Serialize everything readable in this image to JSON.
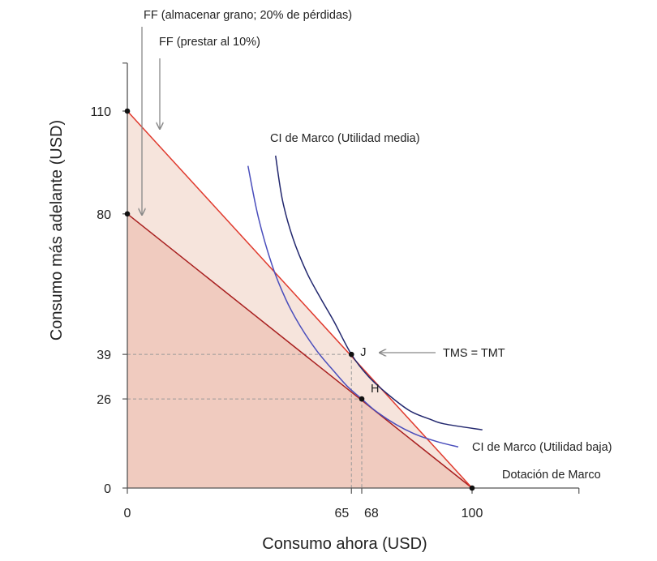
{
  "chart_data": {
    "type": "line",
    "xlabel": "Consumo ahora (USD)",
    "ylabel": "Consumo más adelante (USD)",
    "xlim": [
      0,
      131
    ],
    "ylim": [
      0,
      124
    ],
    "x_ticks": [
      0,
      65,
      68,
      100
    ],
    "y_ticks": [
      0,
      26,
      39,
      80,
      110
    ],
    "x_tick_labels": [
      "0",
      "65",
      "68",
      "100"
    ],
    "y_tick_labels": [
      "0",
      "26",
      "39",
      "80",
      "110"
    ],
    "grid": false,
    "colors": {
      "store_line": "#a81f1f",
      "lend_line": "#e03a2e",
      "ic_low": "#4a4ebc",
      "ic_mid": "#22276e",
      "store_fill": "#f0cbbf",
      "lend_fill": "#f6e4dc",
      "annotation": "#888888",
      "axis": "#555555"
    },
    "series": [
      {
        "key": "store",
        "name": "FF (almacenar grano; 20% de pérdidas)",
        "points": [
          [
            0,
            80
          ],
          [
            100,
            0
          ]
        ]
      },
      {
        "key": "lend",
        "name": "FF (prestar al 10%)",
        "points": [
          [
            0,
            110
          ],
          [
            100,
            0
          ]
        ]
      },
      {
        "key": "ic_low",
        "name": "CI de Marco (Utilidad baja)",
        "points": [
          [
            35,
            94
          ],
          [
            38,
            79
          ],
          [
            42,
            65
          ],
          [
            46,
            55
          ],
          [
            50,
            47.5
          ],
          [
            55,
            40
          ],
          [
            60,
            34
          ],
          [
            64,
            29.5
          ],
          [
            68,
            26
          ],
          [
            72,
            22.5
          ],
          [
            78,
            18.5
          ],
          [
            84,
            15.5
          ],
          [
            90,
            13.5
          ],
          [
            96,
            12
          ]
        ]
      },
      {
        "key": "ic_mid",
        "name": "CI de Marco (Utilidad media)",
        "points": [
          [
            43,
            97
          ],
          [
            45,
            84
          ],
          [
            48,
            73
          ],
          [
            52,
            63
          ],
          [
            56,
            55.5
          ],
          [
            60,
            48.5
          ],
          [
            65,
            39
          ],
          [
            70,
            32.5
          ],
          [
            76,
            27
          ],
          [
            82,
            22.5
          ],
          [
            88,
            20
          ],
          [
            92,
            18.7
          ],
          [
            103,
            17
          ]
        ]
      }
    ],
    "points": [
      {
        "label": "",
        "x": 0,
        "y": 110
      },
      {
        "label": "",
        "x": 0,
        "y": 80
      },
      {
        "label": "J",
        "x": 65,
        "y": 39
      },
      {
        "label": "H",
        "x": 68,
        "y": 26
      },
      {
        "label": "",
        "x": 100,
        "y": 0
      }
    ],
    "annotations": {
      "ff_store": "FF (almacenar grano; 20% de pérdidas)",
      "ff_lend": "FF (prestar al 10%)",
      "ic_mid": "CI de Marco (Utilidad media)",
      "ic_low": "CI de Marco (Utilidad baja)",
      "tms": "TMS = TMT",
      "endowment": "Dotación de Marco"
    }
  }
}
